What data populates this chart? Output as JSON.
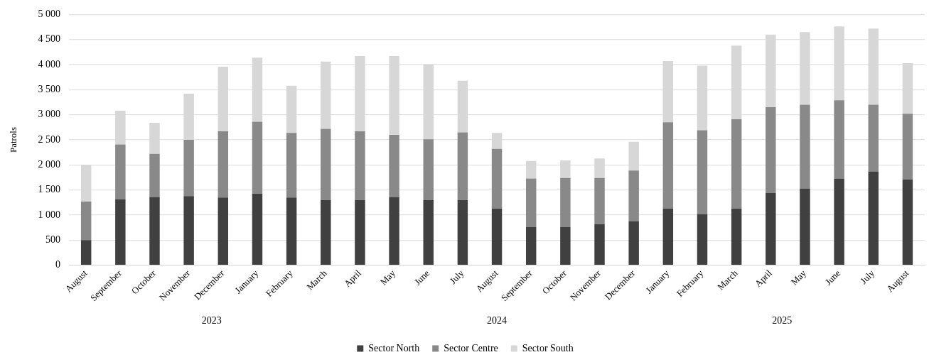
{
  "chart_data": {
    "type": "bar",
    "stacked": true,
    "ylabel": "Patrols",
    "categories": [
      "August",
      "September",
      "October",
      "November",
      "December",
      "January",
      "February",
      "March",
      "April",
      "May",
      "June",
      "July",
      "August",
      "September",
      "October",
      "November",
      "December",
      "January",
      "February",
      "March",
      "April",
      "May",
      "June",
      "July",
      "August"
    ],
    "series": [
      {
        "name": "Sector North",
        "color": "#404040",
        "values": [
          500,
          1310,
          1360,
          1380,
          1350,
          1430,
          1350,
          1300,
          1300,
          1360,
          1300,
          1300,
          1130,
          760,
          760,
          820,
          880,
          1130,
          1020,
          1130,
          1440,
          1530,
          1730,
          1870,
          1710
        ]
      },
      {
        "name": "Sector Centre",
        "color": "#898989",
        "values": [
          770,
          1100,
          860,
          1120,
          1320,
          1430,
          1290,
          1420,
          1370,
          1240,
          1210,
          1350,
          1190,
          970,
          980,
          920,
          1010,
          1720,
          1670,
          1780,
          1710,
          1670,
          1560,
          1330,
          1310
        ]
      },
      {
        "name": "Sector South",
        "color": "#d7d7d7",
        "values": [
          730,
          670,
          620,
          920,
          1290,
          1280,
          940,
          1340,
          1500,
          1570,
          1490,
          1030,
          320,
          350,
          350,
          390,
          570,
          1220,
          1290,
          1470,
          1450,
          1450,
          1470,
          1520,
          1010
        ]
      }
    ],
    "ylim": [
      0,
      5000
    ],
    "yticks": [
      0,
      500,
      {
        "value": 1000,
        "label": "1 000"
      },
      {
        "value": 1500,
        "label": "1 500"
      },
      {
        "value": 2000,
        "label": "2 000"
      },
      {
        "value": 2500,
        "label": "2 500"
      },
      {
        "value": 3000,
        "label": "3 000"
      },
      {
        "value": 3500,
        "label": "3 500"
      },
      {
        "value": 4000,
        "label": "4 000"
      },
      {
        "value": 4500,
        "label": "4 500"
      },
      {
        "value": 5000,
        "label": "5 000"
      }
    ],
    "annotations": [
      "2023",
      "2024",
      "2025"
    ],
    "grid": "y",
    "legend": "bottom"
  }
}
